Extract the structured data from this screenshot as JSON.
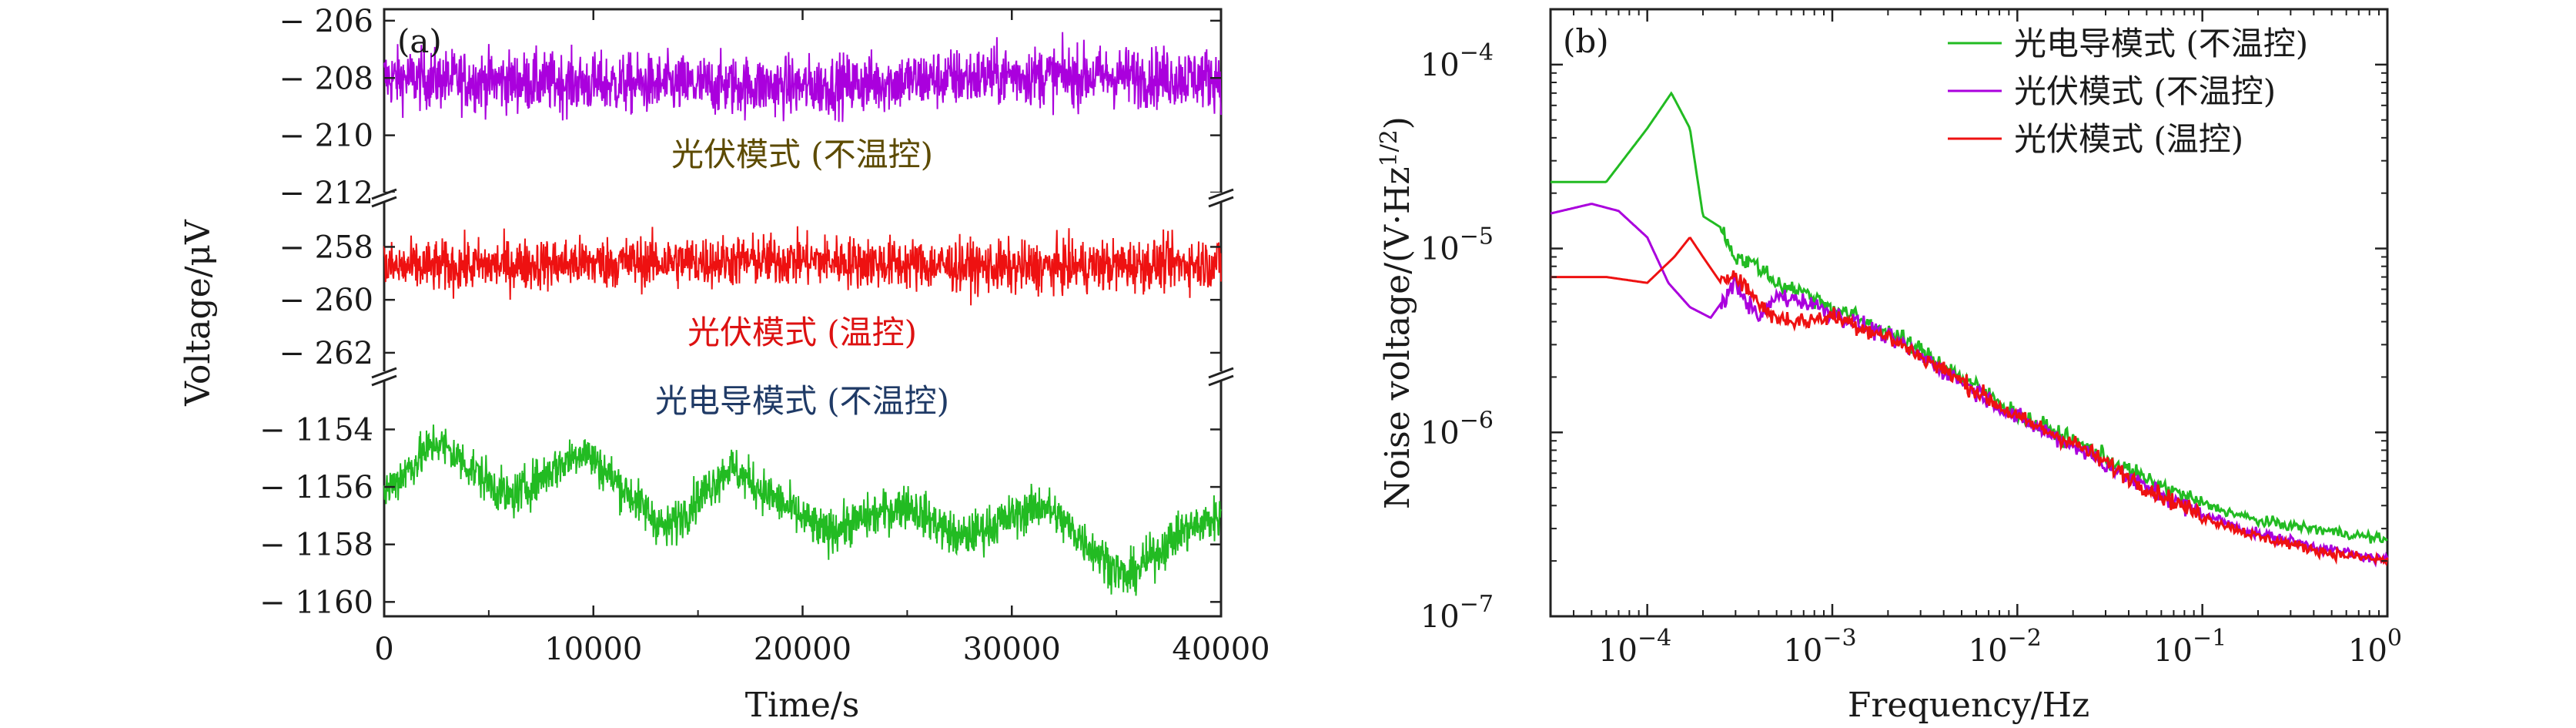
{
  "figure": {
    "panel_a_tag": "(a)",
    "panel_b_tag": "(b)"
  },
  "chart_data": [
    {
      "type": "line",
      "panel": "(a)",
      "xlabel": "Time/s",
      "ylabel": "Voltage/μV",
      "xlim": [
        0,
        40000
      ],
      "xticks": [
        0,
        10000,
        20000,
        30000,
        40000
      ],
      "broken_y_axis": true,
      "grid": false,
      "segments": [
        {
          "label": "光伏模式 (不温控)",
          "color": "#aa00dd",
          "ylim": [
            -212.0,
            -205.6
          ],
          "yticks": [
            -206,
            -208,
            -210,
            -212
          ],
          "mean": -208.1,
          "noise": 0.75,
          "trend": [
            [
              0,
              -208.0
            ],
            [
              10000,
              -208.2
            ],
            [
              20000,
              -208.3
            ],
            [
              30000,
              -207.9
            ],
            [
              40000,
              -208.0
            ]
          ]
        },
        {
          "label": "光伏模式 (温控)",
          "color": "#ee1111",
          "ylim": [
            -262.7,
            -256.3
          ],
          "yticks": [
            -258,
            -260,
            -262
          ],
          "mean": -258.7,
          "noise": 0.7,
          "trend": [
            [
              0,
              -258.8
            ],
            [
              10000,
              -258.6
            ],
            [
              20000,
              -258.5
            ],
            [
              30000,
              -258.8
            ],
            [
              40000,
              -258.6
            ]
          ]
        },
        {
          "label": "光电导模式 (不温控)",
          "color": "#22bb22",
          "ylim": [
            -1160.5,
            -1152.3
          ],
          "yticks": [
            -1154,
            -1156,
            -1158,
            -1160
          ],
          "noise": 0.55,
          "trend": [
            [
              0,
              -1156.2
            ],
            [
              2500,
              -1154.4
            ],
            [
              6000,
              -1156.4
            ],
            [
              9500,
              -1154.7
            ],
            [
              13500,
              -1157.5
            ],
            [
              16500,
              -1155.3
            ],
            [
              21000,
              -1157.6
            ],
            [
              25000,
              -1156.6
            ],
            [
              27500,
              -1157.8
            ],
            [
              31500,
              -1156.6
            ],
            [
              35500,
              -1159.2
            ],
            [
              38000,
              -1157.6
            ],
            [
              40000,
              -1157.0
            ]
          ]
        }
      ]
    },
    {
      "type": "line",
      "panel": "(b)",
      "xlabel": "Frequency/Hz",
      "ylabel": "Noise voltage/(V·Hz^(1/2))",
      "ylabel_parts": {
        "main": "Noise voltage/(V·Hz",
        "sup": "1/2",
        "close": ")"
      },
      "x_scale": "log",
      "y_scale": "log",
      "xlim": [
        3e-05,
        1
      ],
      "ylim": [
        1e-07,
        0.0002
      ],
      "xticks": [
        {
          "value": 0.0001,
          "base": "10",
          "exp": "−4"
        },
        {
          "value": 0.001,
          "base": "10",
          "exp": "−3"
        },
        {
          "value": 0.01,
          "base": "10",
          "exp": "−2"
        },
        {
          "value": 0.1,
          "base": "10",
          "exp": "−1"
        },
        {
          "value": 1,
          "base": "10",
          "exp": "0"
        }
      ],
      "yticks": [
        {
          "value": 0.0001,
          "base": "10",
          "exp": "−4"
        },
        {
          "value": 1e-05,
          "base": "10",
          "exp": "−5"
        },
        {
          "value": 1e-06,
          "base": "10",
          "exp": "−6"
        },
        {
          "value": 1e-07,
          "base": "10",
          "exp": "−7"
        }
      ],
      "legend": "top-right",
      "series": [
        {
          "name": "光电导模式 (不温控)",
          "color": "#22bb22",
          "points": [
            [
              3e-05,
              2.3e-05
            ],
            [
              6e-05,
              2.3e-05
            ],
            [
              0.0001,
              4.5e-05
            ],
            [
              0.000135,
              7e-05
            ],
            [
              0.00017,
              4.5e-05
            ],
            [
              0.0002,
              1.5e-05
            ],
            [
              0.00025,
              1.3e-05
            ],
            [
              0.0003,
              9e-06
            ],
            [
              0.0004,
              8e-06
            ],
            [
              0.0005,
              6.5e-06
            ],
            [
              0.0007,
              5.8e-06
            ],
            [
              0.001,
              4.8e-06
            ],
            [
              0.002,
              3.5e-06
            ],
            [
              0.003,
              2.8e-06
            ],
            [
              0.005,
              2e-06
            ],
            [
              0.01,
              1.25e-06
            ],
            [
              0.02,
              9e-07
            ],
            [
              0.05,
              5.5e-07
            ],
            [
              0.1,
              4.1e-07
            ],
            [
              0.2,
              3.3e-07
            ],
            [
              0.5,
              2.9e-07
            ],
            [
              1,
              2.6e-07
            ]
          ]
        },
        {
          "name": "光伏模式 (不温控)",
          "color": "#aa00dd",
          "points": [
            [
              3e-05,
              1.55e-05
            ],
            [
              5e-05,
              1.75e-05
            ],
            [
              7e-05,
              1.6e-05
            ],
            [
              0.0001,
              1.15e-05
            ],
            [
              0.00013,
              6.5e-06
            ],
            [
              0.00017,
              4.8e-06
            ],
            [
              0.00022,
              4.2e-06
            ],
            [
              0.0003,
              6.5e-06
            ],
            [
              0.0004,
              4.1e-06
            ],
            [
              0.0005,
              5.5e-06
            ],
            [
              0.0007,
              5.2e-06
            ],
            [
              0.001,
              4.5e-06
            ],
            [
              0.002,
              3.3e-06
            ],
            [
              0.003,
              2.6e-06
            ],
            [
              0.005,
              1.9e-06
            ],
            [
              0.01,
              1.2e-06
            ],
            [
              0.02,
              8.5e-07
            ],
            [
              0.05,
              5e-07
            ],
            [
              0.1,
              3.6e-07
            ],
            [
              0.2,
              2.8e-07
            ],
            [
              0.5,
              2.3e-07
            ],
            [
              1,
              2e-07
            ]
          ]
        },
        {
          "name": "光伏模式 (温控)",
          "color": "#ee1111",
          "points": [
            [
              3e-05,
              7e-06
            ],
            [
              6e-05,
              7e-06
            ],
            [
              0.0001,
              6.5e-06
            ],
            [
              0.00014,
              9e-06
            ],
            [
              0.00017,
              1.15e-05
            ],
            [
              0.0002,
              9e-06
            ],
            [
              0.00025,
              6.5e-06
            ],
            [
              0.0003,
              7.5e-06
            ],
            [
              0.0004,
              5e-06
            ],
            [
              0.0005,
              4.2e-06
            ],
            [
              0.0007,
              4e-06
            ],
            [
              0.001,
              4.3e-06
            ],
            [
              0.002,
              3.3e-06
            ],
            [
              0.003,
              2.6e-06
            ],
            [
              0.005,
              1.9e-06
            ],
            [
              0.01,
              1.2e-06
            ],
            [
              0.02,
              8.8e-07
            ],
            [
              0.05,
              5e-07
            ],
            [
              0.1,
              3.5e-07
            ],
            [
              0.2,
              2.7e-07
            ],
            [
              0.5,
              2.2e-07
            ],
            [
              1,
              2e-07
            ]
          ]
        }
      ]
    }
  ]
}
